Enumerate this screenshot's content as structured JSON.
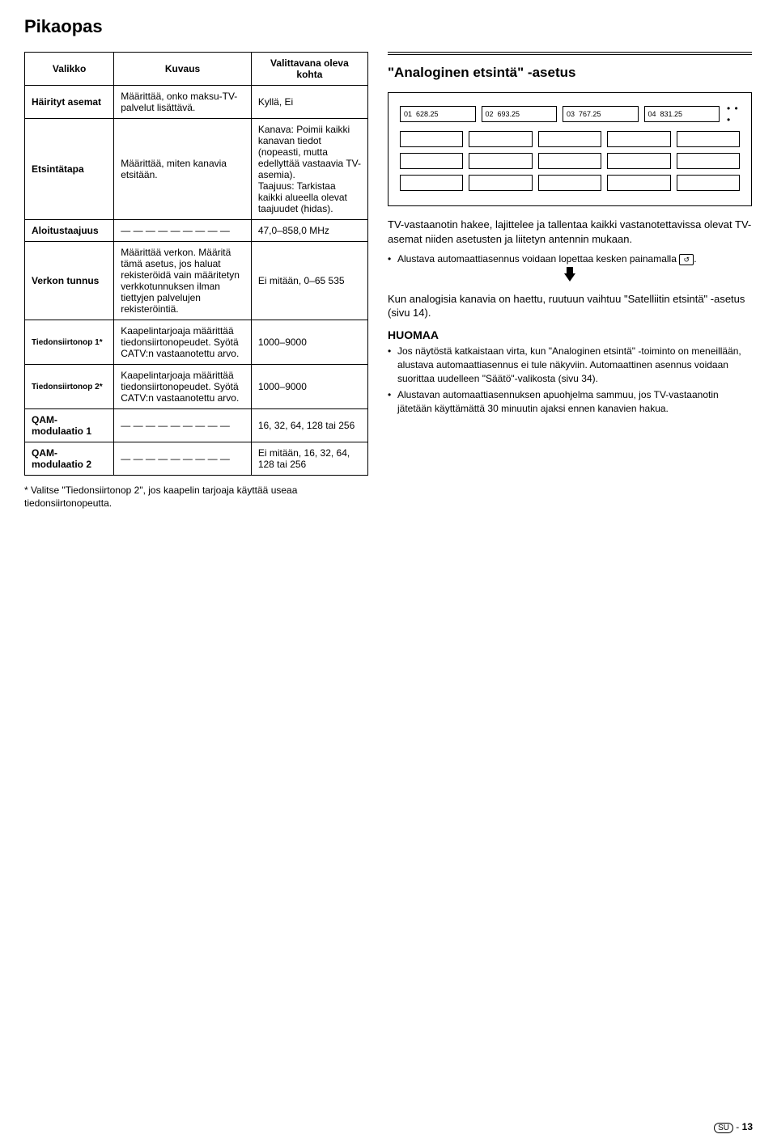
{
  "page_title": "Pikaopas",
  "table": {
    "headers": [
      "Valikko",
      "Kuvaus",
      "Valittavana oleva kohta"
    ],
    "rows": [
      {
        "c1": "Häirityt asemat",
        "c2": "Määrittää, onko maksu-TV-palvelut lisättävä.",
        "c3": "Kyllä, Ei"
      },
      {
        "c1": "Etsintätapa",
        "c2": "Määrittää, miten kanavia etsitään.",
        "c3": "Kanava: Poimii kaikki kanavan tiedot (nopeasti, mutta edellyttää vastaavia TV-asemia).\nTaajuus: Tarkistaa kaikki alueella olevat taajuudet (hidas)."
      },
      {
        "c1": "Aloitustaajuus",
        "c2": "— — — — — — — — —",
        "c3": "47,0–858,0 MHz"
      },
      {
        "c1": "Verkon tunnus",
        "c2": "Määrittää verkon. Määritä tämä asetus, jos haluat rekisteröidä vain määritetyn verkkotunnuksen ilman tiettyjen palvelujen rekisteröintiä.",
        "c3": "Ei mitään, 0–65 535"
      },
      {
        "c1": "Tiedonsiirtonop 1*",
        "c2": "Kaapelintarjoaja määrittää tiedonsiirtonopeudet. Syötä CATV:n vastaanotettu arvo.",
        "c3": "1000–9000"
      },
      {
        "c1": "Tiedonsiirtonop 2*",
        "c2": "Kaapelintarjoaja määrittää tiedonsiirtonopeudet. Syötä CATV:n vastaanotettu arvo.",
        "c3": "1000–9000"
      },
      {
        "c1": "QAM-modulaatio 1",
        "c2": "— — — — — — — — —",
        "c3": "16, 32, 64, 128 tai 256"
      },
      {
        "c1": "QAM-modulaatio 2",
        "c2": "— — — — — — — — —",
        "c3": "Ei mitään, 16, 32, 64, 128 tai 256"
      }
    ]
  },
  "footnote": "*  Valitse \"Tiedonsiirtonop 2\", jos kaapelin tarjoaja käyttää useaa tiedonsiirtonopeutta.",
  "right": {
    "heading": "\"Analoginen etsintä\" -asetus",
    "channels": [
      {
        "num": "01",
        "freq": "628.25"
      },
      {
        "num": "02",
        "freq": "693.25"
      },
      {
        "num": "03",
        "freq": "767.25"
      },
      {
        "num": "04",
        "freq": "831.25"
      }
    ],
    "dots": "• • •",
    "desc1": "TV-vastaanotin hakee, lajittelee ja tallentaa kaikki vastanotettavissa olevat TV-asemat niiden asetusten ja liitetyn antennin mukaan.",
    "bullet1a": "Alustava automaattiasennus voidaan lopettaa kesken painamalla ",
    "bullet1b": ".",
    "desc2": "Kun analogisia kanavia on haettu, ruutuun vaihtuu \"Satelliitin etsintä\" -asetus (sivu 14).",
    "note_label": "HUOMAA",
    "bullet2": "Jos näytöstä katkaistaan virta, kun \"Analoginen etsintä\" -toiminto on meneillään, alustava automaattiasennus ei tule näkyviin. Automaattinen asennus voidaan suorittaa uudelleen \"Säätö\"-valikosta (sivu 34).",
    "bullet3": "Alustavan automaattiasennuksen apuohjelma sammuu, jos TV-vastaanotin jätetään käyttämättä 30 minuutin ajaksi ennen kanavien hakua."
  },
  "footer": {
    "region": "SU",
    "sep": " - ",
    "page": "13"
  }
}
